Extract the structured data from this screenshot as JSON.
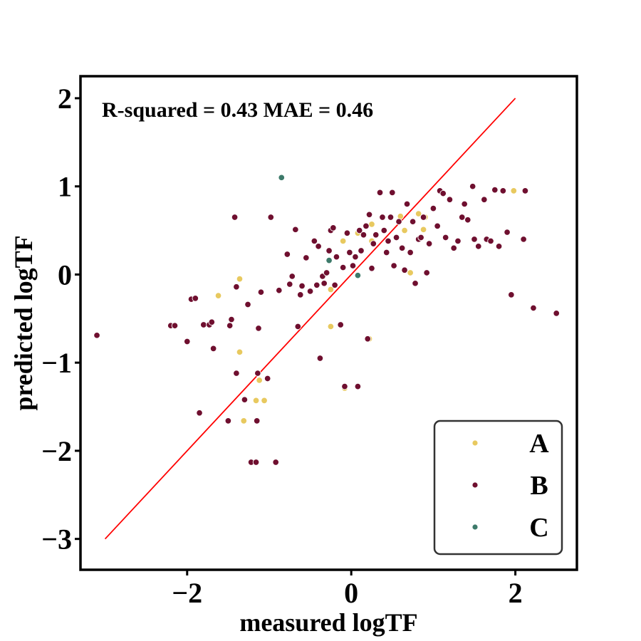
{
  "chart_data": {
    "type": "scatter",
    "title": "",
    "xlabel": "measured logTF",
    "ylabel": "predicted logTF",
    "xlim": [
      -3.3,
      2.75
    ],
    "ylim": [
      -3.35,
      2.25
    ],
    "xticks": [
      -2,
      0,
      2
    ],
    "yticks": [
      -3,
      -2,
      -1,
      0,
      1,
      2
    ],
    "x_tick_labels": [
      "−2",
      "0",
      "2"
    ],
    "y_tick_labels": [
      "−3",
      "−2",
      "−1",
      "0",
      "1",
      "2"
    ],
    "grid": false,
    "legend_position": "lower-right",
    "annotation": "R-squared = 0.43 MAE = 0.46",
    "identity_line": {
      "x": [
        -3,
        2
      ],
      "y": [
        -3,
        2
      ],
      "color": "#ff0000"
    },
    "series": [
      {
        "name": "A",
        "color": "#e8c95f",
        "points": [
          [
            -1.62,
            -0.24
          ],
          [
            -1.36,
            -0.05
          ],
          [
            -1.36,
            -0.88
          ],
          [
            -1.31,
            -1.66
          ],
          [
            -1.12,
            -1.2
          ],
          [
            -1.16,
            -1.43
          ],
          [
            -1.06,
            -1.43
          ],
          [
            -0.25,
            -0.59
          ],
          [
            -0.25,
            -0.17
          ],
          [
            -0.1,
            0.38
          ],
          [
            -0.08,
            -1.29
          ],
          [
            0.08,
            0.47
          ],
          [
            0.22,
            -0.73
          ],
          [
            0.25,
            0.57
          ],
          [
            0.25,
            0.38
          ],
          [
            0.6,
            0.66
          ],
          [
            0.65,
            0.5
          ],
          [
            0.72,
            0.02
          ],
          [
            0.82,
            0.69
          ],
          [
            0.88,
            0.51
          ],
          [
            0.9,
            0.65
          ],
          [
            1.98,
            0.95
          ]
        ]
      },
      {
        "name": "B",
        "color": "#6f0f2f",
        "points": [
          [
            -3.1,
            -0.69
          ],
          [
            -2.2,
            -0.58
          ],
          [
            -2.15,
            -0.58
          ],
          [
            -2.0,
            -0.76
          ],
          [
            -1.95,
            -0.28
          ],
          [
            -1.9,
            -0.27
          ],
          [
            -1.85,
            -1.57
          ],
          [
            -1.8,
            -0.57
          ],
          [
            -1.73,
            -0.57
          ],
          [
            -1.7,
            -0.54
          ],
          [
            -1.68,
            -0.84
          ],
          [
            -1.5,
            -1.66
          ],
          [
            -1.48,
            -0.58
          ],
          [
            -1.46,
            -0.51
          ],
          [
            -1.42,
            0.65
          ],
          [
            -1.4,
            -0.14
          ],
          [
            -1.4,
            -1.12
          ],
          [
            -1.3,
            -1.42
          ],
          [
            -1.26,
            -0.34
          ],
          [
            -1.22,
            -2.13
          ],
          [
            -1.16,
            -2.13
          ],
          [
            -1.14,
            -1.12
          ],
          [
            -1.13,
            -0.61
          ],
          [
            -1.15,
            -1.66
          ],
          [
            -1.1,
            -0.2
          ],
          [
            -1.02,
            -1.18
          ],
          [
            -0.92,
            -2.13
          ],
          [
            -0.98,
            0.65
          ],
          [
            -0.88,
            -0.18
          ],
          [
            -0.78,
            0.23
          ],
          [
            -0.75,
            -0.11
          ],
          [
            -0.72,
            -0.02
          ],
          [
            -0.68,
            0.51
          ],
          [
            -0.65,
            -0.59
          ],
          [
            -0.62,
            -0.23
          ],
          [
            -0.6,
            -0.13
          ],
          [
            -0.55,
            0.19
          ],
          [
            -0.5,
            -0.19
          ],
          [
            -0.45,
            0.38
          ],
          [
            -0.42,
            -0.12
          ],
          [
            -0.4,
            0.32
          ],
          [
            -0.38,
            -0.95
          ],
          [
            -0.35,
            -0.02
          ],
          [
            -0.33,
            -0.1
          ],
          [
            -0.3,
            0.02
          ],
          [
            -0.27,
            0.27
          ],
          [
            -0.25,
            0.5
          ],
          [
            -0.22,
            0.53
          ],
          [
            -0.2,
            -0.12
          ],
          [
            -0.18,
            0.2
          ],
          [
            -0.13,
            -0.57
          ],
          [
            -0.1,
            0.08
          ],
          [
            -0.08,
            -1.27
          ],
          [
            -0.05,
            0.47
          ],
          [
            -0.02,
            0.25
          ],
          [
            0.02,
            0.1
          ],
          [
            0.05,
            0.2
          ],
          [
            0.08,
            -1.27
          ],
          [
            0.1,
            0.5
          ],
          [
            0.12,
            0.27
          ],
          [
            0.15,
            0.45
          ],
          [
            0.18,
            0.55
          ],
          [
            0.2,
            -0.73
          ],
          [
            0.22,
            0.68
          ],
          [
            0.25,
            0.07
          ],
          [
            0.27,
            0.35
          ],
          [
            0.3,
            0.45
          ],
          [
            0.35,
            0.93
          ],
          [
            0.38,
            0.65
          ],
          [
            0.4,
            0.5
          ],
          [
            0.43,
            0.25
          ],
          [
            0.45,
            0.38
          ],
          [
            0.48,
            0.65
          ],
          [
            0.5,
            0.93
          ],
          [
            0.52,
            0.1
          ],
          [
            0.55,
            0.42
          ],
          [
            0.58,
            0.6
          ],
          [
            0.62,
            0.3
          ],
          [
            0.65,
            0.05
          ],
          [
            0.68,
            0.8
          ],
          [
            0.72,
            0.25
          ],
          [
            0.75,
            0.6
          ],
          [
            0.78,
            -0.1
          ],
          [
            0.82,
            0.4
          ],
          [
            0.85,
            0.42
          ],
          [
            0.88,
            0.65
          ],
          [
            0.92,
            0.02
          ],
          [
            0.95,
            0.35
          ],
          [
            1.0,
            0.75
          ],
          [
            1.05,
            0.55
          ],
          [
            1.08,
            0.95
          ],
          [
            1.12,
            0.92
          ],
          [
            1.15,
            0.42
          ],
          [
            1.2,
            0.85
          ],
          [
            1.25,
            0.3
          ],
          [
            1.3,
            0.38
          ],
          [
            1.35,
            0.65
          ],
          [
            1.38,
            0.8
          ],
          [
            1.42,
            0.62
          ],
          [
            1.48,
            1.0
          ],
          [
            1.5,
            0.4
          ],
          [
            1.55,
            0.32
          ],
          [
            1.62,
            0.85
          ],
          [
            1.65,
            0.4
          ],
          [
            1.7,
            0.38
          ],
          [
            1.75,
            0.96
          ],
          [
            1.8,
            0.32
          ],
          [
            1.85,
            0.95
          ],
          [
            1.9,
            0.48
          ],
          [
            1.95,
            -0.23
          ],
          [
            2.12,
            0.95
          ],
          [
            2.1,
            0.4
          ],
          [
            2.22,
            -0.38
          ],
          [
            2.5,
            -0.44
          ]
        ]
      },
      {
        "name": "C",
        "color": "#3d7a6a",
        "points": [
          [
            -0.85,
            1.1
          ],
          [
            -0.27,
            0.16
          ],
          [
            0.08,
            -0.01
          ]
        ]
      }
    ]
  }
}
